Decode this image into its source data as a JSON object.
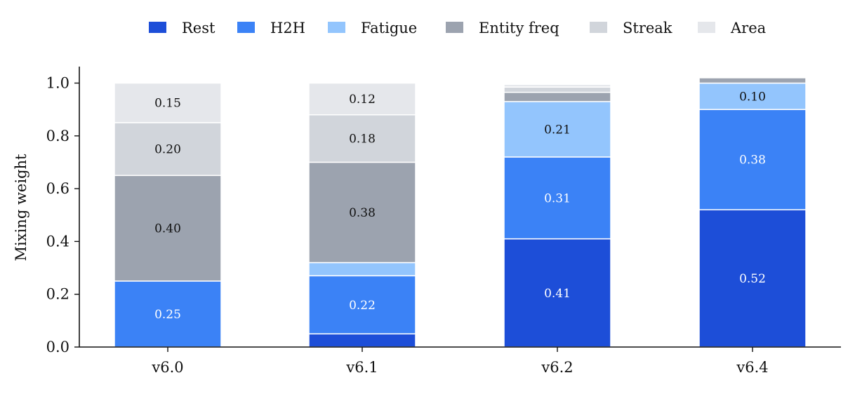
{
  "chart_data": {
    "type": "bar",
    "stacked": true,
    "title": "",
    "xlabel": "",
    "ylabel": "Mixing weight",
    "ylim": [
      0,
      1.06
    ],
    "yticks": [
      "0.0",
      "0.2",
      "0.4",
      "0.6",
      "0.8",
      "1.0"
    ],
    "categories": [
      "v6.0",
      "v6.1",
      "v6.2",
      "v6.4"
    ],
    "legend_position": "top-center",
    "grid": false,
    "series": [
      {
        "name": "Rest",
        "color": "#1d4ed8",
        "label_color": "#ffffff",
        "values": [
          0.0,
          0.05,
          0.41,
          0.52
        ]
      },
      {
        "name": "H2H",
        "color": "#3b82f6",
        "label_color": "#ffffff",
        "values": [
          0.25,
          0.22,
          0.31,
          0.38
        ]
      },
      {
        "name": "Fatigue",
        "color": "#93c5fd",
        "label_color": "#111111",
        "values": [
          0.0,
          0.05,
          0.21,
          0.1
        ]
      },
      {
        "name": "Entity freq",
        "color": "#9ca3af",
        "label_color": "#111111",
        "values": [
          0.4,
          0.38,
          0.035,
          0.02
        ]
      },
      {
        "name": "Streak",
        "color": "#d1d5db",
        "label_color": "#111111",
        "values": [
          0.2,
          0.18,
          0.02,
          0.0
        ]
      },
      {
        "name": "Area",
        "color": "#e5e7eb",
        "label_color": "#111111",
        "values": [
          0.15,
          0.12,
          0.01,
          0.0
        ]
      }
    ],
    "data_labels": [
      {
        "category": "v6.0",
        "series": "H2H",
        "text": "0.25"
      },
      {
        "category": "v6.0",
        "series": "Entity freq",
        "text": "0.40"
      },
      {
        "category": "v6.0",
        "series": "Streak",
        "text": "0.20"
      },
      {
        "category": "v6.0",
        "series": "Area",
        "text": "0.15"
      },
      {
        "category": "v6.1",
        "series": "H2H",
        "text": "0.22"
      },
      {
        "category": "v6.1",
        "series": "Entity freq",
        "text": "0.38"
      },
      {
        "category": "v6.1",
        "series": "Streak",
        "text": "0.18"
      },
      {
        "category": "v6.1",
        "series": "Area",
        "text": "0.12"
      },
      {
        "category": "v6.2",
        "series": "Rest",
        "text": "0.41"
      },
      {
        "category": "v6.2",
        "series": "H2H",
        "text": "0.31"
      },
      {
        "category": "v6.2",
        "series": "Fatigue",
        "text": "0.21"
      },
      {
        "category": "v6.4",
        "series": "Rest",
        "text": "0.52"
      },
      {
        "category": "v6.4",
        "series": "H2H",
        "text": "0.38"
      },
      {
        "category": "v6.4",
        "series": "Fatigue",
        "text": "0.10"
      }
    ]
  }
}
